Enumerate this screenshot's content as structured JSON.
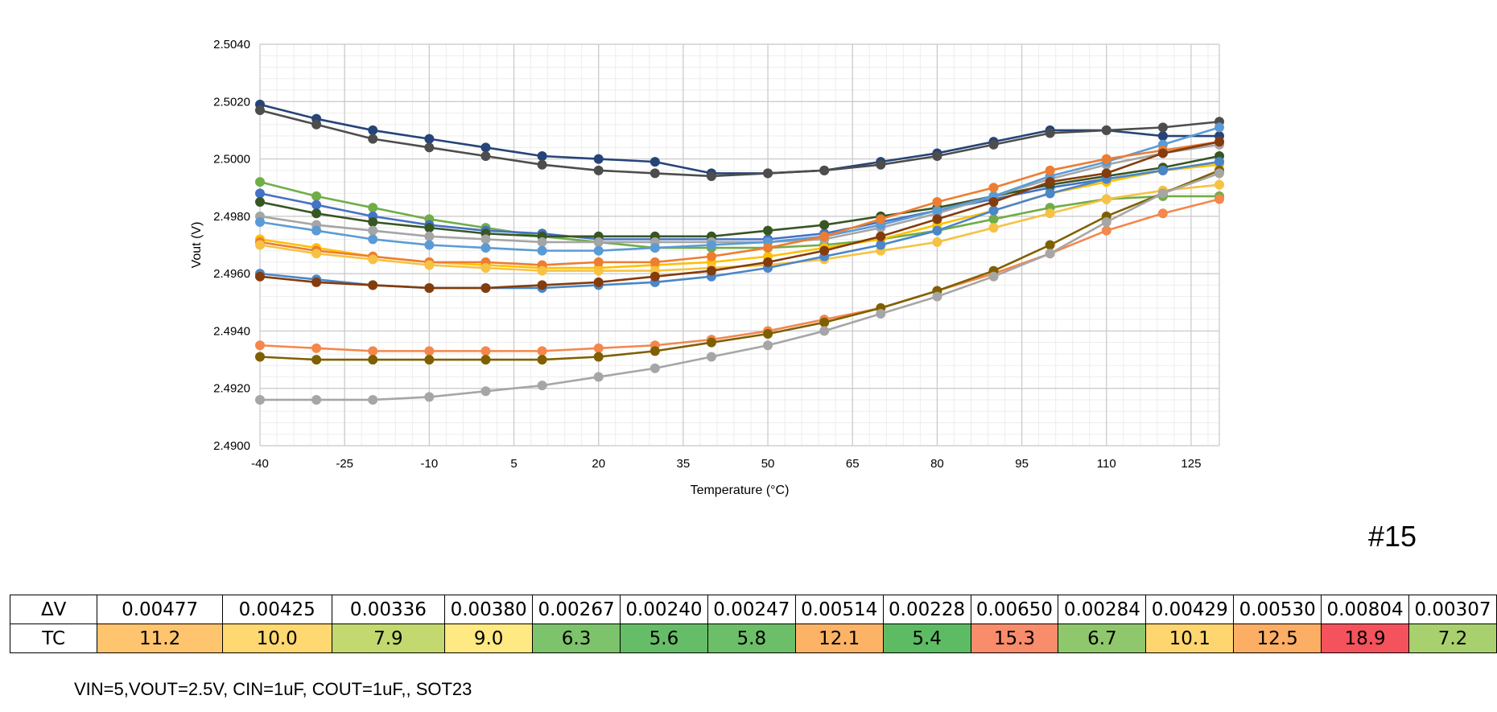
{
  "chart_data": {
    "type": "line",
    "title": "",
    "xlabel": "Temperature (°C)",
    "ylabel": "Vout (V)",
    "xlim": [
      -40,
      130
    ],
    "ylim": [
      2.49,
      2.504
    ],
    "x_ticks": [
      -40,
      -25,
      -10,
      5,
      20,
      35,
      50,
      65,
      80,
      95,
      110,
      125
    ],
    "y_ticks": [
      2.49,
      2.492,
      2.494,
      2.496,
      2.498,
      2.5,
      2.502,
      2.504
    ],
    "grid": true,
    "legend": "none",
    "x": [
      -40,
      -30,
      -20,
      -10,
      0,
      10,
      20,
      30,
      40,
      50,
      60,
      70,
      80,
      90,
      100,
      110,
      120,
      130
    ],
    "series": [
      {
        "color": "#264478",
        "values": [
          2.5019,
          2.5014,
          2.501,
          2.5007,
          2.5004,
          2.5001,
          2.5,
          2.4999,
          2.4995,
          2.4995,
          2.4996,
          2.4999,
          2.5002,
          2.5006,
          2.501,
          2.501,
          2.5008,
          2.5008
        ]
      },
      {
        "color": "#4D4D4D",
        "values": [
          2.5017,
          2.5012,
          2.5007,
          2.5004,
          2.5001,
          2.4998,
          2.4996,
          2.4995,
          2.4994,
          2.4995,
          2.4996,
          2.4998,
          2.5001,
          2.5005,
          2.5009,
          2.501,
          2.5011,
          2.5013
        ]
      },
      {
        "color": "#70AD47",
        "values": [
          2.4992,
          2.4987,
          2.4983,
          2.4979,
          2.4976,
          2.4973,
          2.4971,
          2.4969,
          2.4969,
          2.4969,
          2.497,
          2.4972,
          2.4975,
          2.4979,
          2.4983,
          2.4986,
          2.4987,
          2.4987
        ]
      },
      {
        "color": "#4472C4",
        "values": [
          2.4988,
          2.4984,
          2.498,
          2.4977,
          2.4975,
          2.4974,
          2.4972,
          2.4972,
          2.4972,
          2.4972,
          2.4974,
          2.4978,
          2.4982,
          2.4986,
          2.499,
          2.4993,
          2.4996,
          2.4999
        ]
      },
      {
        "color": "#375623",
        "values": [
          2.4985,
          2.4981,
          2.4978,
          2.4976,
          2.4974,
          2.4973,
          2.4973,
          2.4973,
          2.4973,
          2.4975,
          2.4977,
          2.498,
          2.4983,
          2.4987,
          2.4991,
          2.4994,
          2.4997,
          2.5001
        ]
      },
      {
        "color": "#A5A5A5",
        "values": [
          2.498,
          2.4977,
          2.4975,
          2.4973,
          2.4972,
          2.4971,
          2.4971,
          2.4971,
          2.4971,
          2.4971,
          2.4972,
          2.4976,
          2.4981,
          2.4987,
          2.4993,
          2.4998,
          2.5002,
          2.5005
        ]
      },
      {
        "color": "#5B9BD5",
        "values": [
          2.4978,
          2.4975,
          2.4972,
          2.497,
          2.4969,
          2.4968,
          2.4968,
          2.4969,
          2.497,
          2.4971,
          2.4973,
          2.4977,
          2.4982,
          2.4987,
          2.4994,
          2.4999,
          2.5005,
          2.5011
        ]
      },
      {
        "color": "#FFC000",
        "values": [
          2.4972,
          2.4969,
          2.4966,
          2.4964,
          2.4963,
          2.4962,
          2.4962,
          2.4963,
          2.4964,
          2.4966,
          2.4969,
          2.4972,
          2.4977,
          2.4982,
          2.4988,
          2.4992,
          2.4996,
          2.4998
        ]
      },
      {
        "color": "#ED7D31",
        "values": [
          2.4971,
          2.4968,
          2.4966,
          2.4964,
          2.4964,
          2.4963,
          2.4964,
          2.4964,
          2.4966,
          2.4969,
          2.4973,
          2.4979,
          2.4985,
          2.499,
          2.4996,
          2.5,
          2.5003,
          2.5006
        ]
      },
      {
        "color": "#F6C243",
        "values": [
          2.497,
          2.4967,
          2.4965,
          2.4963,
          2.4962,
          2.4961,
          2.4961,
          2.4961,
          2.4962,
          2.4963,
          2.4965,
          2.4968,
          2.4971,
          2.4976,
          2.4981,
          2.4986,
          2.4989,
          2.4991
        ]
      },
      {
        "color": "#4A86C8",
        "values": [
          2.496,
          2.4958,
          2.4956,
          2.4955,
          2.4955,
          2.4955,
          2.4956,
          2.4957,
          2.4959,
          2.4962,
          2.4966,
          2.497,
          2.4975,
          2.4982,
          2.4988,
          2.4993,
          2.4996,
          2.4999
        ]
      },
      {
        "color": "#843C0C",
        "values": [
          2.4959,
          2.4957,
          2.4956,
          2.4955,
          2.4955,
          2.4956,
          2.4957,
          2.4959,
          2.4961,
          2.4964,
          2.4968,
          2.4973,
          2.4979,
          2.4985,
          2.4992,
          2.4995,
          2.5002,
          2.5006
        ]
      },
      {
        "color": "#F4874B",
        "values": [
          2.4935,
          2.4934,
          2.4933,
          2.4933,
          2.4933,
          2.4933,
          2.4934,
          2.4935,
          2.4937,
          2.494,
          2.4944,
          2.4948,
          2.4954,
          2.496,
          2.4967,
          2.4975,
          2.4981,
          2.4986
        ]
      },
      {
        "color": "#7F6000",
        "values": [
          2.4931,
          2.493,
          2.493,
          2.493,
          2.493,
          2.493,
          2.4931,
          2.4933,
          2.4936,
          2.4939,
          2.4943,
          2.4948,
          2.4954,
          2.4961,
          2.497,
          2.498,
          2.4988,
          2.4996
        ]
      },
      {
        "color": "#A6A6A6",
        "values": [
          2.4916,
          2.4916,
          2.4916,
          2.4917,
          2.4919,
          2.4921,
          2.4924,
          2.4927,
          2.4931,
          2.4935,
          2.494,
          2.4946,
          2.4952,
          2.4959,
          2.4967,
          2.4978,
          2.4988,
          2.4995
        ]
      }
    ]
  },
  "chart_id": "#15",
  "summary_table": {
    "rows": [
      {
        "label": "ΔV",
        "cells": [
          {
            "text": "0.00477"
          },
          {
            "text": "0.00425"
          },
          {
            "text": "0.00336"
          },
          {
            "text": "0.00380"
          },
          {
            "text": "0.00267"
          },
          {
            "text": "0.00240"
          },
          {
            "text": "0.00247"
          },
          {
            "text": "0.00514"
          },
          {
            "text": "0.00228"
          },
          {
            "text": "0.00650"
          },
          {
            "text": "0.00284"
          },
          {
            "text": "0.00429"
          },
          {
            "text": "0.00530"
          },
          {
            "text": "0.00804"
          },
          {
            "text": "0.00307"
          }
        ]
      },
      {
        "label": "TC",
        "cells": [
          {
            "text": "11.2",
            "color": "#FEC46E"
          },
          {
            "text": "10.0",
            "color": "#FED870"
          },
          {
            "text": "7.9",
            "color": "#C3D86F"
          },
          {
            "text": "9.0",
            "color": "#FFE983"
          },
          {
            "text": "6.3",
            "color": "#7DC36B"
          },
          {
            "text": "5.6",
            "color": "#66BD67"
          },
          {
            "text": "5.8",
            "color": "#6CBF68"
          },
          {
            "text": "12.1",
            "color": "#FDB366"
          },
          {
            "text": "5.4",
            "color": "#5DBB63"
          },
          {
            "text": "15.3",
            "color": "#F98C6B"
          },
          {
            "text": "6.7",
            "color": "#8FC86C"
          },
          {
            "text": "10.1",
            "color": "#FED66F"
          },
          {
            "text": "12.5",
            "color": "#FCAE65"
          },
          {
            "text": "18.9",
            "color": "#F4525C"
          },
          {
            "text": "7.2",
            "color": "#A8D06E"
          }
        ]
      }
    ],
    "col_widths": [
      155,
      135,
      140,
      108,
      108,
      108,
      108,
      108,
      108,
      108,
      108,
      108,
      108,
      108,
      108
    ]
  },
  "footnote": "VIN=5,VOUT=2.5V, CIN=1uF, COUT=1uF,, SOT23"
}
